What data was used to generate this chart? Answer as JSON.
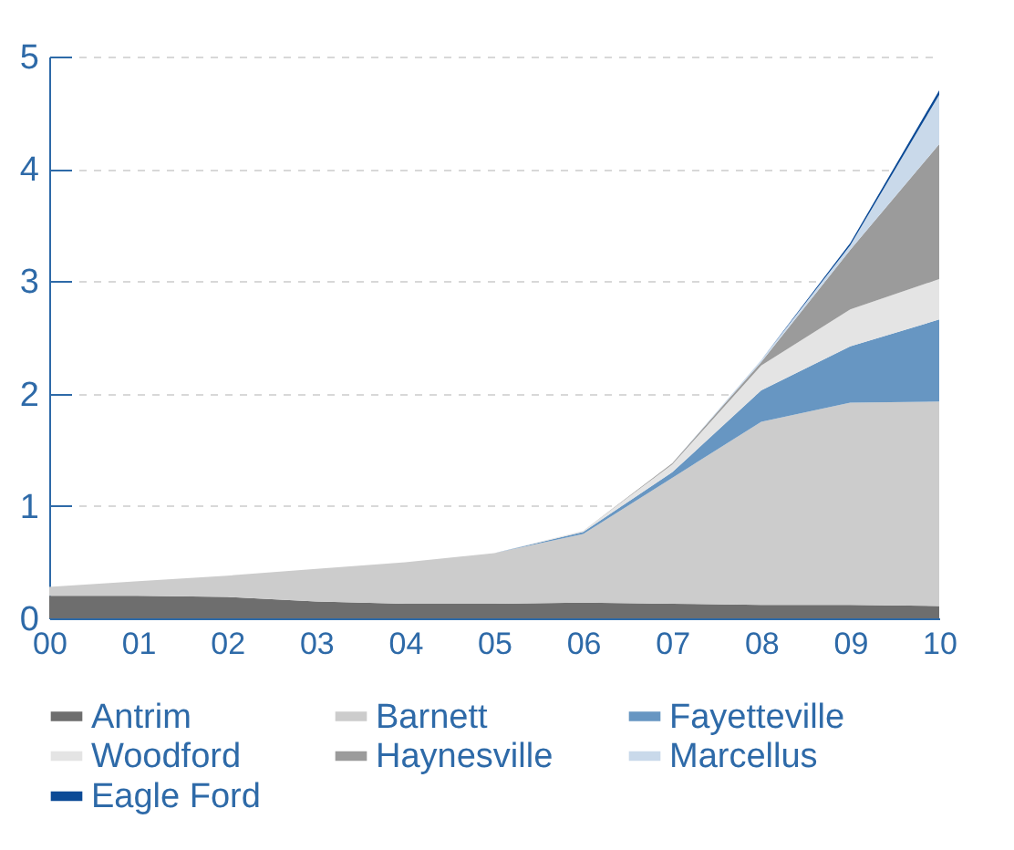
{
  "chart_data": {
    "type": "area",
    "stacked": true,
    "categories": [
      "00",
      "01",
      "02",
      "03",
      "04",
      "05",
      "06",
      "07",
      "08",
      "09",
      "10"
    ],
    "series": [
      {
        "name": "Antrim",
        "color": "#6e6e6e",
        "values": [
          0.2,
          0.2,
          0.19,
          0.15,
          0.13,
          0.13,
          0.14,
          0.13,
          0.12,
          0.12,
          0.11
        ]
      },
      {
        "name": "Barnett",
        "color": "#cccccc",
        "values": [
          0.08,
          0.13,
          0.19,
          0.29,
          0.37,
          0.45,
          0.61,
          1.12,
          1.63,
          1.8,
          1.82
        ]
      },
      {
        "name": "Fayetteville",
        "color": "#6796c2",
        "values": [
          0,
          0,
          0,
          0,
          0,
          0,
          0.02,
          0.05,
          0.28,
          0.5,
          0.73
        ]
      },
      {
        "name": "Woodford",
        "color": "#e4e4e4",
        "values": [
          0,
          0,
          0,
          0,
          0,
          0,
          0.01,
          0.07,
          0.22,
          0.33,
          0.36
        ]
      },
      {
        "name": "Haynesville",
        "color": "#9b9b9b",
        "values": [
          0,
          0,
          0,
          0,
          0,
          0,
          0,
          0.01,
          0.03,
          0.53,
          1.2
        ]
      },
      {
        "name": "Marcellus",
        "color": "#c9d9ea",
        "values": [
          0,
          0,
          0,
          0,
          0,
          0,
          0,
          0,
          0.02,
          0.04,
          0.44
        ]
      },
      {
        "name": "Eagle Ford",
        "color": "#0b4a96",
        "values": [
          0,
          0,
          0,
          0,
          0,
          0,
          0,
          0,
          0,
          0.02,
          0.04
        ]
      }
    ],
    "ylim": [
      0,
      5
    ],
    "yticks": [
      0,
      1,
      2,
      3,
      4,
      5
    ],
    "grid": "y",
    "legend": "bottom"
  }
}
